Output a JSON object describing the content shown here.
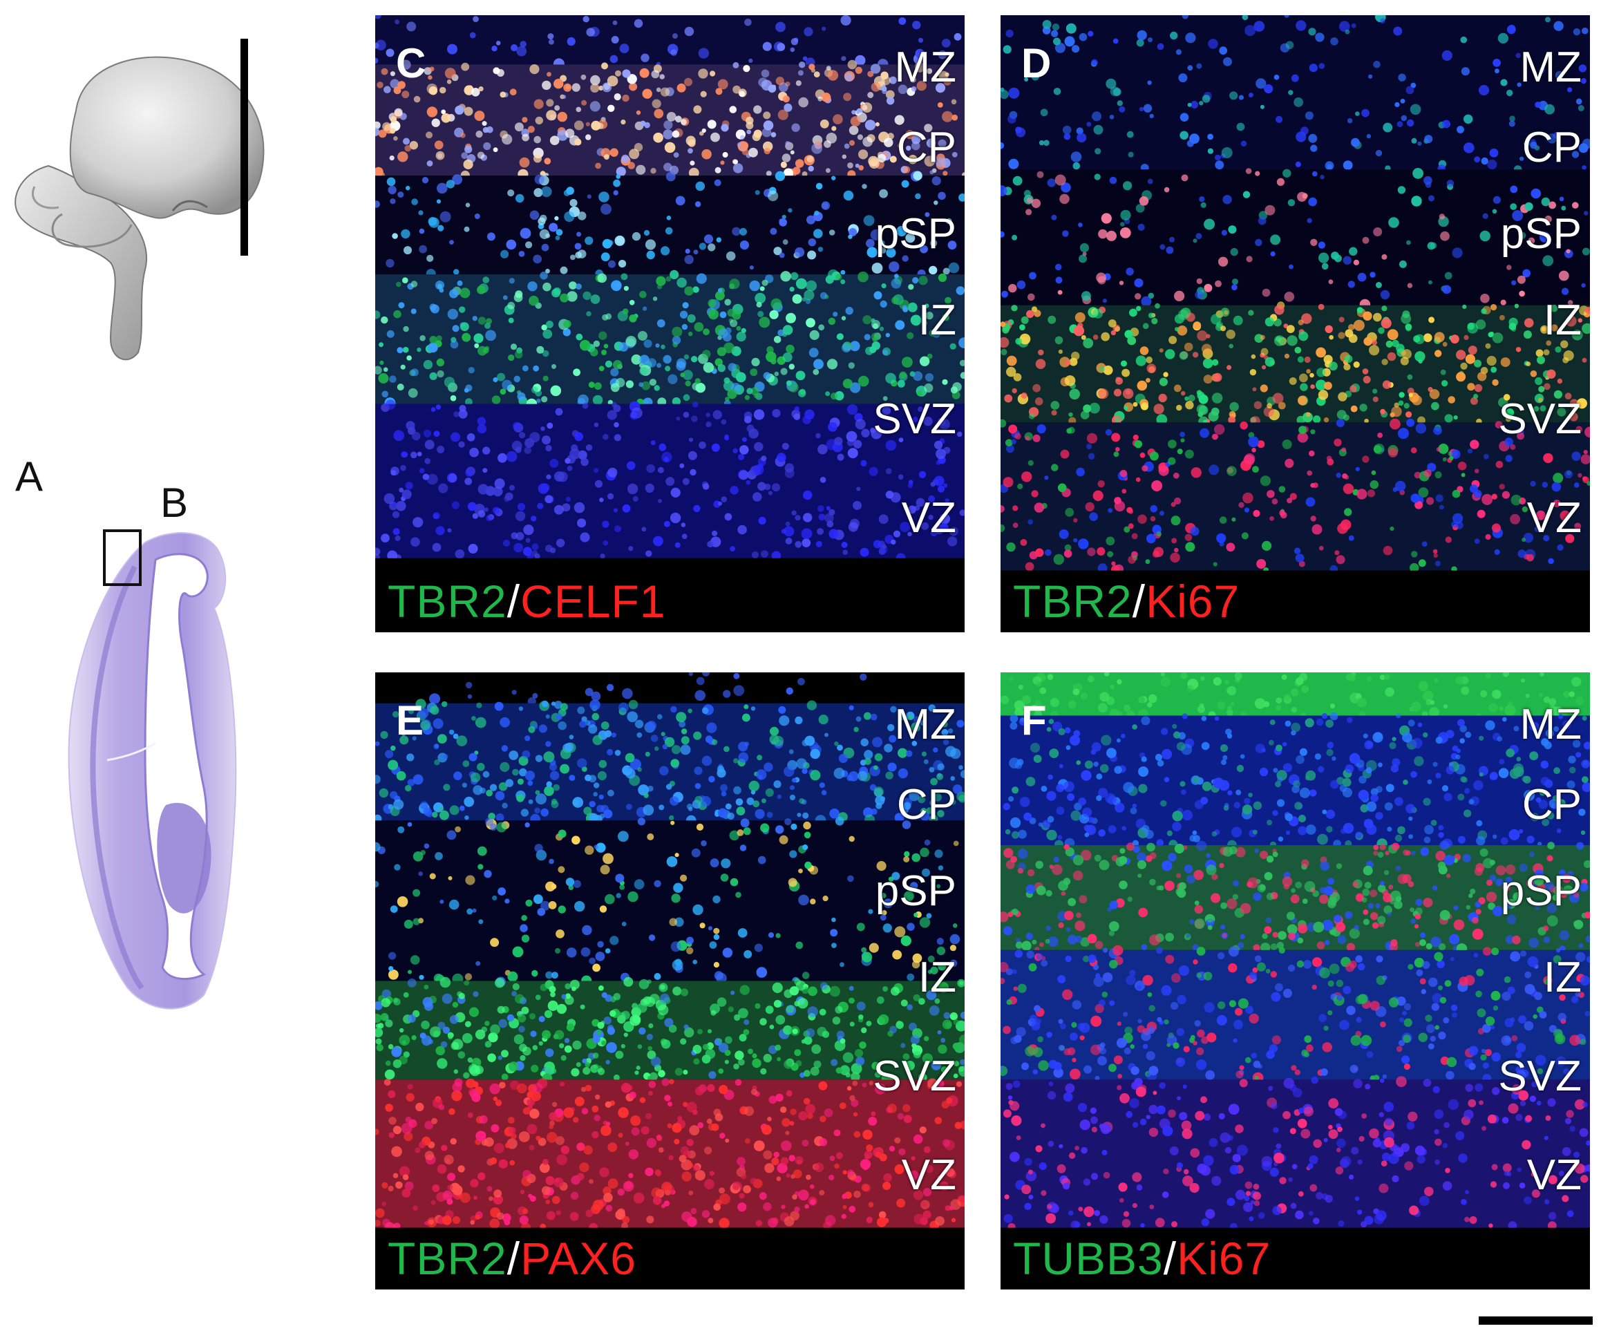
{
  "figure": {
    "label_a": "A",
    "label_b": "B"
  },
  "panels": [
    {
      "id": "C",
      "letter": "C",
      "zones": [
        "MZ",
        "CP",
        "pSP",
        "IZ",
        "SVZ",
        "VZ"
      ],
      "stain_green": "TBR2",
      "stain_sep": "/",
      "stain_red": "CELF1"
    },
    {
      "id": "D",
      "letter": "D",
      "zones": [
        "MZ",
        "CP",
        "pSP",
        "IZ",
        "SVZ",
        "VZ"
      ],
      "stain_green": "TBR2",
      "stain_sep": "/",
      "stain_red": "Ki67"
    },
    {
      "id": "E",
      "letter": "E",
      "zones": [
        "MZ",
        "CP",
        "pSP",
        "IZ",
        "SVZ",
        "VZ"
      ],
      "stain_green": "TBR2",
      "stain_sep": "/",
      "stain_red": "PAX6"
    },
    {
      "id": "F",
      "letter": "F",
      "zones": [
        "MZ",
        "CP",
        "pSP",
        "IZ",
        "SVZ",
        "VZ"
      ],
      "stain_green": "TUBB3",
      "stain_sep": "/",
      "stain_red": "Ki67"
    }
  ],
  "colors": {
    "green_stain": "#1fb84a",
    "red_stain": "#ff2020",
    "nissl": "#9c88d8",
    "brain_model": "#d9d9d9"
  }
}
